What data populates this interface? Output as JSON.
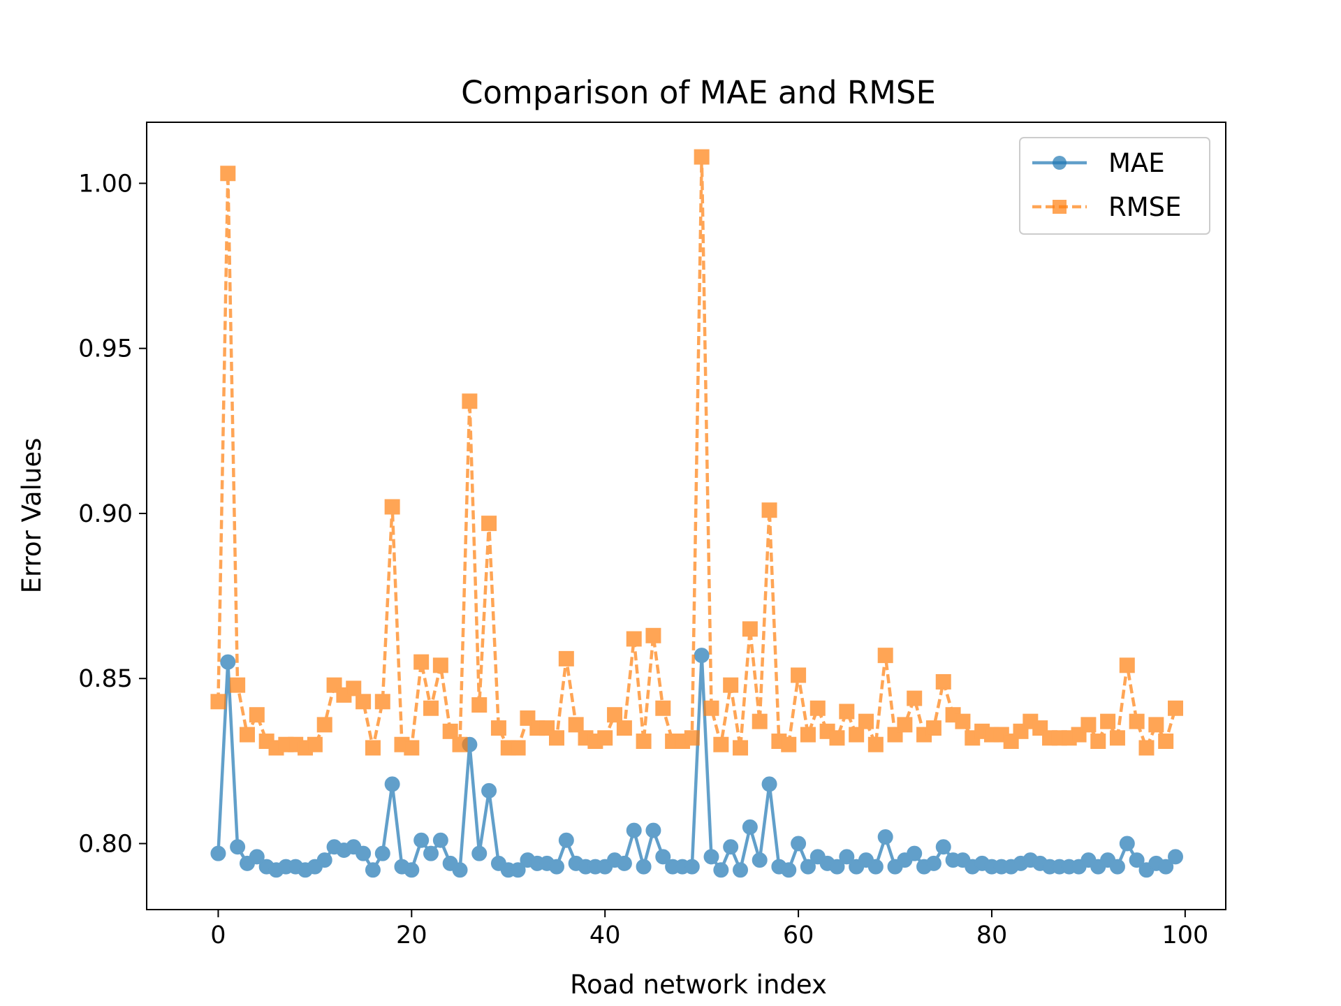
{
  "chart_data": {
    "type": "line",
    "title": "Comparison of MAE and RMSE",
    "xlabel": "Road network index",
    "ylabel": "Error Values",
    "xlim": [
      -7.4,
      104.2
    ],
    "ylim": [
      0.78,
      1.0185
    ],
    "xticks": [
      0,
      20,
      40,
      60,
      80,
      100
    ],
    "xtick_labels": [
      "0",
      "20",
      "40",
      "60",
      "80",
      "100"
    ],
    "yticks": [
      0.8,
      0.85,
      0.9,
      0.95,
      1.0
    ],
    "ytick_labels": [
      "0.80",
      "0.85",
      "0.90",
      "0.95",
      "1.00"
    ],
    "grid": false,
    "legend_position": "top-right",
    "x": [
      0,
      1,
      2,
      3,
      4,
      5,
      6,
      7,
      8,
      9,
      10,
      11,
      12,
      13,
      14,
      15,
      16,
      17,
      18,
      19,
      20,
      21,
      22,
      23,
      24,
      25,
      26,
      27,
      28,
      29,
      30,
      31,
      32,
      33,
      34,
      35,
      36,
      37,
      38,
      39,
      40,
      41,
      42,
      43,
      44,
      45,
      46,
      47,
      48,
      49,
      50,
      51,
      52,
      53,
      54,
      55,
      56,
      57,
      58,
      59,
      60,
      61,
      62,
      63,
      64,
      65,
      66,
      67,
      68,
      69,
      70,
      71,
      72,
      73,
      74,
      75,
      76,
      77,
      78,
      79,
      80,
      81,
      82,
      83,
      84,
      85,
      86,
      87,
      88,
      89,
      90,
      91,
      92,
      93,
      94,
      95,
      96,
      97,
      98,
      99
    ],
    "series": [
      {
        "name": "MAE",
        "color": "#1f77b4",
        "marker": "circle",
        "linestyle": "solid",
        "values": [
          0.797,
          0.855,
          0.799,
          0.794,
          0.796,
          0.793,
          0.792,
          0.793,
          0.793,
          0.792,
          0.793,
          0.795,
          0.799,
          0.798,
          0.799,
          0.797,
          0.792,
          0.797,
          0.818,
          0.793,
          0.792,
          0.801,
          0.797,
          0.801,
          0.794,
          0.792,
          0.83,
          0.797,
          0.816,
          0.794,
          0.792,
          0.792,
          0.795,
          0.794,
          0.794,
          0.793,
          0.801,
          0.794,
          0.793,
          0.793,
          0.793,
          0.795,
          0.794,
          0.804,
          0.793,
          0.804,
          0.796,
          0.793,
          0.793,
          0.793,
          0.857,
          0.796,
          0.792,
          0.799,
          0.792,
          0.805,
          0.795,
          0.818,
          0.793,
          0.792,
          0.8,
          0.793,
          0.796,
          0.794,
          0.793,
          0.796,
          0.793,
          0.795,
          0.793,
          0.802,
          0.793,
          0.795,
          0.797,
          0.793,
          0.794,
          0.799,
          0.795,
          0.795,
          0.793,
          0.794,
          0.793,
          0.793,
          0.793,
          0.794,
          0.795,
          0.794,
          0.793,
          0.793,
          0.793,
          0.793,
          0.795,
          0.793,
          0.795,
          0.793,
          0.8,
          0.795,
          0.792,
          0.794,
          0.793,
          0.796
        ]
      },
      {
        "name": "RMSE",
        "color": "#ff7f0e",
        "marker": "square",
        "linestyle": "dashed",
        "values": [
          0.843,
          1.003,
          0.848,
          0.833,
          0.839,
          0.831,
          0.829,
          0.83,
          0.83,
          0.829,
          0.83,
          0.836,
          0.848,
          0.845,
          0.847,
          0.843,
          0.829,
          0.843,
          0.902,
          0.83,
          0.829,
          0.855,
          0.841,
          0.854,
          0.834,
          0.83,
          0.934,
          0.842,
          0.897,
          0.835,
          0.829,
          0.829,
          0.838,
          0.835,
          0.835,
          0.832,
          0.856,
          0.836,
          0.832,
          0.831,
          0.832,
          0.839,
          0.835,
          0.862,
          0.831,
          0.863,
          0.841,
          0.831,
          0.831,
          0.832,
          1.008,
          0.841,
          0.83,
          0.848,
          0.829,
          0.865,
          0.837,
          0.901,
          0.831,
          0.83,
          0.851,
          0.833,
          0.841,
          0.834,
          0.832,
          0.84,
          0.833,
          0.837,
          0.83,
          0.857,
          0.833,
          0.836,
          0.844,
          0.833,
          0.835,
          0.849,
          0.839,
          0.837,
          0.832,
          0.834,
          0.833,
          0.833,
          0.831,
          0.834,
          0.837,
          0.835,
          0.832,
          0.832,
          0.832,
          0.833,
          0.836,
          0.831,
          0.837,
          0.832,
          0.854,
          0.837,
          0.829,
          0.836,
          0.831,
          0.841
        ]
      }
    ]
  }
}
